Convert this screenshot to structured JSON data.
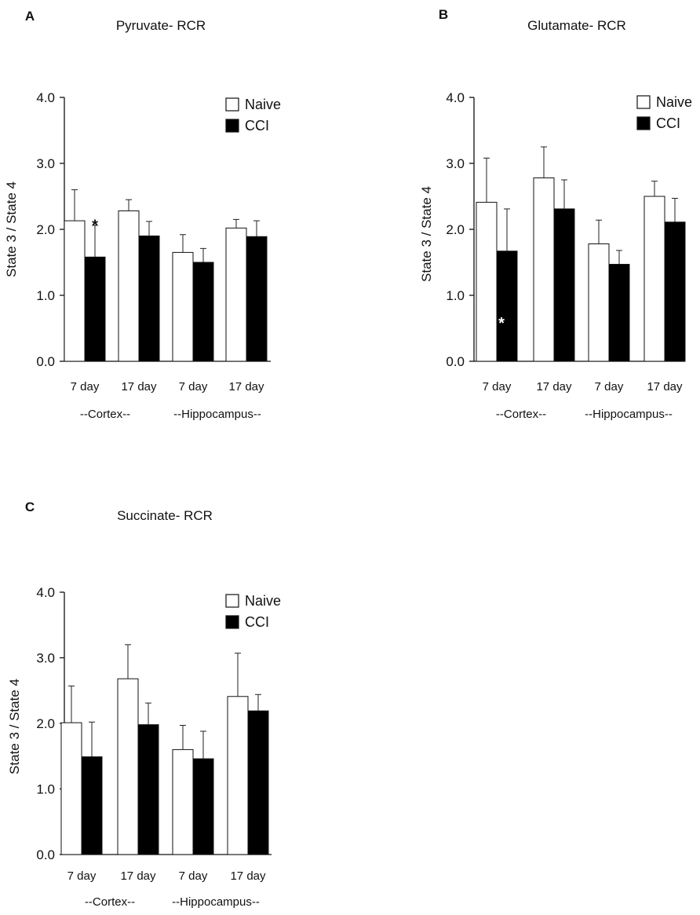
{
  "legend": {
    "naive": "Naive",
    "cci": "CCI"
  },
  "colors": {
    "naive": "#ffffff",
    "cci": "#000000",
    "outline": "#111111"
  },
  "chart_data": [
    {
      "panel": "A",
      "type": "bar",
      "title": "Pyruvate- RCR",
      "ylabel": "State 3 / State 4",
      "ylim": [
        0,
        4.0
      ],
      "yticks": [
        "0.0",
        "1.0",
        "2.0",
        "3.0",
        "4.0"
      ],
      "categories": [
        "7 day",
        "17 day",
        "7 day",
        "17 day"
      ],
      "groups": [
        "--Cortex--",
        "--Hippocampus--"
      ],
      "series": [
        {
          "name": "Naive",
          "values": [
            2.13,
            2.28,
            1.65,
            2.02
          ],
          "errors": [
            0.47,
            0.17,
            0.27,
            0.13
          ]
        },
        {
          "name": "CCI",
          "values": [
            1.58,
            1.9,
            1.5,
            1.89
          ],
          "errors": [
            0.48,
            0.22,
            0.21,
            0.24
          ]
        }
      ],
      "annotations": [
        {
          "text": "*",
          "series": 1,
          "index": 0,
          "style": "above"
        }
      ]
    },
    {
      "panel": "B",
      "type": "bar",
      "title": "Glutamate- RCR",
      "ylabel": "State 3 / State 4",
      "ylim": [
        0,
        4.0
      ],
      "yticks": [
        "0.0",
        "1.0",
        "2.0",
        "3.0",
        "4.0"
      ],
      "categories": [
        "7 day",
        "17 day",
        "7 day",
        "17 day"
      ],
      "groups": [
        "--Cortex--",
        "--Hippocampus--"
      ],
      "series": [
        {
          "name": "Naive",
          "values": [
            2.41,
            2.78,
            1.78,
            2.5
          ],
          "errors": [
            0.67,
            0.47,
            0.36,
            0.23
          ]
        },
        {
          "name": "CCI",
          "values": [
            1.67,
            2.31,
            1.47,
            2.11
          ],
          "errors": [
            0.64,
            0.44,
            0.21,
            0.36
          ]
        }
      ],
      "annotations": [
        {
          "text": "*",
          "series": 1,
          "index": 0,
          "style": "inside"
        }
      ]
    },
    {
      "panel": "C",
      "type": "bar",
      "title": "Succinate- RCR",
      "ylabel": "State 3 / State 4",
      "ylim": [
        0,
        4.0
      ],
      "yticks": [
        "0.0",
        "1.0",
        "2.0",
        "3.0",
        "4.0"
      ],
      "categories": [
        "7 day",
        "17 day",
        "7 day",
        "17 day"
      ],
      "groups": [
        "--Cortex--",
        "--Hippocampus--"
      ],
      "series": [
        {
          "name": "Naive",
          "values": [
            2.01,
            2.68,
            1.6,
            2.41
          ],
          "errors": [
            0.56,
            0.52,
            0.37,
            0.66
          ]
        },
        {
          "name": "CCI",
          "values": [
            1.49,
            1.98,
            1.46,
            2.19
          ],
          "errors": [
            0.53,
            0.33,
            0.42,
            0.25
          ]
        }
      ],
      "annotations": []
    }
  ]
}
